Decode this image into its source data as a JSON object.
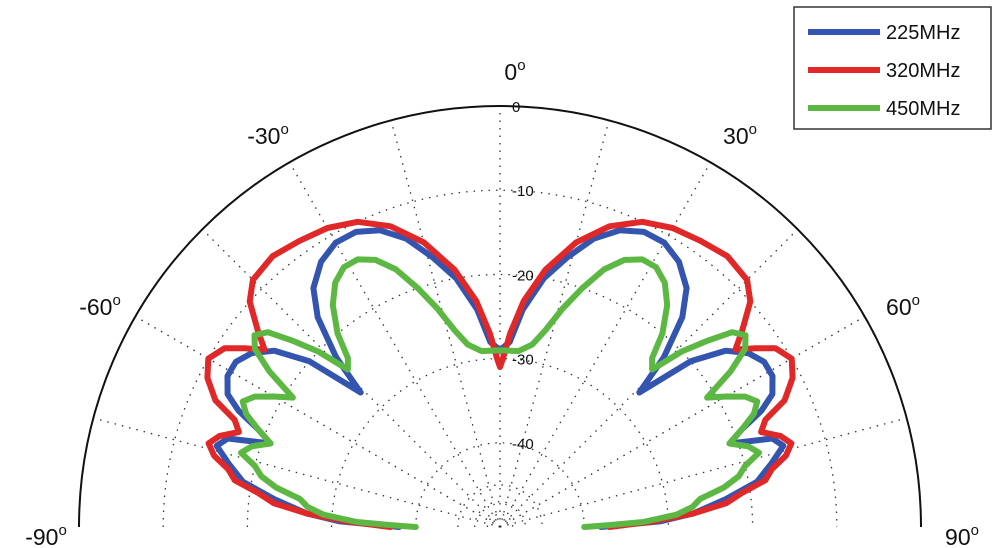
{
  "chart_data": {
    "type": "line",
    "projection": "polar-half",
    "theta_unit": "degrees",
    "theta_range": [
      -90,
      90
    ],
    "r_unit": "dB",
    "r_range": [
      -50,
      0
    ],
    "grid": true,
    "angle_ticks": [
      -90,
      -60,
      -30,
      0,
      30,
      60,
      90
    ],
    "angle_tick_labels": [
      "-90",
      "-60",
      "-30",
      "0",
      "30",
      "60",
      "90"
    ],
    "degree_symbol": "o",
    "r_ticks": [
      0,
      -10,
      -20,
      -30,
      -40
    ],
    "r_tick_labels": [
      "0",
      "-10",
      "-20",
      "-30",
      "-40"
    ],
    "legend_position": "top-right",
    "series": [
      {
        "name": "225MHz",
        "color": "#3355b0",
        "points": [
          [
            -90,
            -38
          ],
          [
            -88,
            -31
          ],
          [
            -86,
            -27
          ],
          [
            -83,
            -23
          ],
          [
            -80,
            -19
          ],
          [
            -77,
            -17
          ],
          [
            -74,
            -15
          ],
          [
            -72,
            -16
          ],
          [
            -70,
            -21
          ],
          [
            -68,
            -19
          ],
          [
            -66,
            -16
          ],
          [
            -64,
            -14
          ],
          [
            -61,
            -13
          ],
          [
            -58,
            -13
          ],
          [
            -55,
            -14
          ],
          [
            -52,
            -16
          ],
          [
            -49,
            -20
          ],
          [
            -46,
            -27
          ],
          [
            -44,
            -22
          ],
          [
            -41,
            -17
          ],
          [
            -38,
            -14
          ],
          [
            -34,
            -12
          ],
          [
            -30,
            -11
          ],
          [
            -26,
            -11
          ],
          [
            -22,
            -12
          ],
          [
            -18,
            -14
          ],
          [
            -14,
            -17
          ],
          [
            -10,
            -20
          ],
          [
            -6,
            -24
          ],
          [
            -3,
            -28
          ],
          [
            0,
            -29
          ],
          [
            3,
            -28
          ],
          [
            6,
            -24
          ],
          [
            10,
            -20
          ],
          [
            14,
            -17
          ],
          [
            18,
            -14
          ],
          [
            22,
            -12
          ],
          [
            26,
            -11
          ],
          [
            30,
            -11
          ],
          [
            34,
            -12
          ],
          [
            38,
            -14
          ],
          [
            41,
            -17
          ],
          [
            44,
            -22
          ],
          [
            46,
            -27
          ],
          [
            49,
            -20
          ],
          [
            52,
            -16
          ],
          [
            55,
            -14
          ],
          [
            58,
            -13
          ],
          [
            61,
            -13
          ],
          [
            64,
            -14
          ],
          [
            66,
            -16
          ],
          [
            68,
            -19
          ],
          [
            70,
            -21
          ],
          [
            72,
            -16
          ],
          [
            74,
            -15
          ],
          [
            77,
            -17
          ],
          [
            80,
            -19
          ],
          [
            83,
            -23
          ],
          [
            86,
            -27
          ],
          [
            88,
            -31
          ],
          [
            90,
            -38
          ]
        ]
      },
      {
        "name": "320MHz",
        "color": "#e02828",
        "points": [
          [
            -90,
            -37
          ],
          [
            -88,
            -32
          ],
          [
            -86,
            -27
          ],
          [
            -84,
            -23
          ],
          [
            -82,
            -21
          ],
          [
            -80,
            -18
          ],
          [
            -78,
            -17
          ],
          [
            -76,
            -15
          ],
          [
            -74,
            -14
          ],
          [
            -72,
            -15
          ],
          [
            -70,
            -17
          ],
          [
            -68,
            -16
          ],
          [
            -66,
            -13
          ],
          [
            -63,
            -11
          ],
          [
            -60,
            -10
          ],
          [
            -57,
            -11
          ],
          [
            -55,
            -13
          ],
          [
            -53,
            -15
          ],
          [
            -51,
            -13
          ],
          [
            -48,
            -10
          ],
          [
            -45,
            -8.5
          ],
          [
            -40,
            -8
          ],
          [
            -35,
            -8.5
          ],
          [
            -30,
            -9
          ],
          [
            -25,
            -10
          ],
          [
            -20,
            -12
          ],
          [
            -15,
            -15
          ],
          [
            -10,
            -19
          ],
          [
            -6,
            -23
          ],
          [
            -3,
            -27
          ],
          [
            -1,
            -30
          ],
          [
            0,
            -31
          ],
          [
            1,
            -30
          ],
          [
            3,
            -27
          ],
          [
            6,
            -23
          ],
          [
            10,
            -19
          ],
          [
            15,
            -15
          ],
          [
            20,
            -12
          ],
          [
            25,
            -10
          ],
          [
            30,
            -9
          ],
          [
            35,
            -8.5
          ],
          [
            40,
            -8
          ],
          [
            45,
            -8.5
          ],
          [
            48,
            -10
          ],
          [
            51,
            -13
          ],
          [
            53,
            -15
          ],
          [
            55,
            -13
          ],
          [
            57,
            -11
          ],
          [
            60,
            -10
          ],
          [
            63,
            -11
          ],
          [
            66,
            -13
          ],
          [
            68,
            -16
          ],
          [
            70,
            -17
          ],
          [
            72,
            -15
          ],
          [
            74,
            -14
          ],
          [
            76,
            -15
          ],
          [
            78,
            -17
          ],
          [
            80,
            -18
          ],
          [
            82,
            -21
          ],
          [
            84,
            -23
          ],
          [
            86,
            -27
          ],
          [
            88,
            -32
          ],
          [
            90,
            -37
          ]
        ]
      },
      {
        "name": "450MHz",
        "color": "#5cb842",
        "points": [
          [
            -90,
            -40
          ],
          [
            -89,
            -37
          ],
          [
            -88,
            -33
          ],
          [
            -86,
            -29
          ],
          [
            -84,
            -27
          ],
          [
            -82,
            -26
          ],
          [
            -80,
            -23
          ],
          [
            -78,
            -21
          ],
          [
            -76,
            -20
          ],
          [
            -74,
            -18
          ],
          [
            -72,
            -19
          ],
          [
            -70,
            -21
          ],
          [
            -68,
            -19
          ],
          [
            -66,
            -17
          ],
          [
            -64,
            -16
          ],
          [
            -62,
            -17
          ],
          [
            -60,
            -19
          ],
          [
            -58,
            -21
          ],
          [
            -56,
            -17
          ],
          [
            -54,
            -14
          ],
          [
            -52,
            -13
          ],
          [
            -50,
            -14
          ],
          [
            -48,
            -17
          ],
          [
            -46,
            -20
          ],
          [
            -44,
            -24
          ],
          [
            -42,
            -23
          ],
          [
            -40,
            -20
          ],
          [
            -37,
            -17
          ],
          [
            -34,
            -15
          ],
          [
            -31,
            -14
          ],
          [
            -28,
            -14
          ],
          [
            -25,
            -15
          ],
          [
            -22,
            -17
          ],
          [
            -19,
            -20
          ],
          [
            -16,
            -23
          ],
          [
            -13,
            -26
          ],
          [
            -10,
            -28
          ],
          [
            -6,
            -29
          ],
          [
            0,
            -29
          ],
          [
            6,
            -29
          ],
          [
            10,
            -28
          ],
          [
            13,
            -26
          ],
          [
            16,
            -23
          ],
          [
            19,
            -20
          ],
          [
            22,
            -17
          ],
          [
            25,
            -15
          ],
          [
            28,
            -14
          ],
          [
            31,
            -14
          ],
          [
            34,
            -15
          ],
          [
            37,
            -17
          ],
          [
            40,
            -20
          ],
          [
            42,
            -23
          ],
          [
            44,
            -24
          ],
          [
            46,
            -20
          ],
          [
            48,
            -17
          ],
          [
            50,
            -14
          ],
          [
            52,
            -13
          ],
          [
            54,
            -14
          ],
          [
            56,
            -17
          ],
          [
            58,
            -21
          ],
          [
            60,
            -19
          ],
          [
            62,
            -17
          ],
          [
            64,
            -16
          ],
          [
            66,
            -17
          ],
          [
            68,
            -19
          ],
          [
            70,
            -21
          ],
          [
            72,
            -19
          ],
          [
            74,
            -18
          ],
          [
            76,
            -20
          ],
          [
            78,
            -21
          ],
          [
            80,
            -23
          ],
          [
            82,
            -26
          ],
          [
            84,
            -27
          ],
          [
            86,
            -29
          ],
          [
            88,
            -33
          ],
          [
            89,
            -37
          ],
          [
            90,
            -40
          ]
        ]
      }
    ]
  }
}
